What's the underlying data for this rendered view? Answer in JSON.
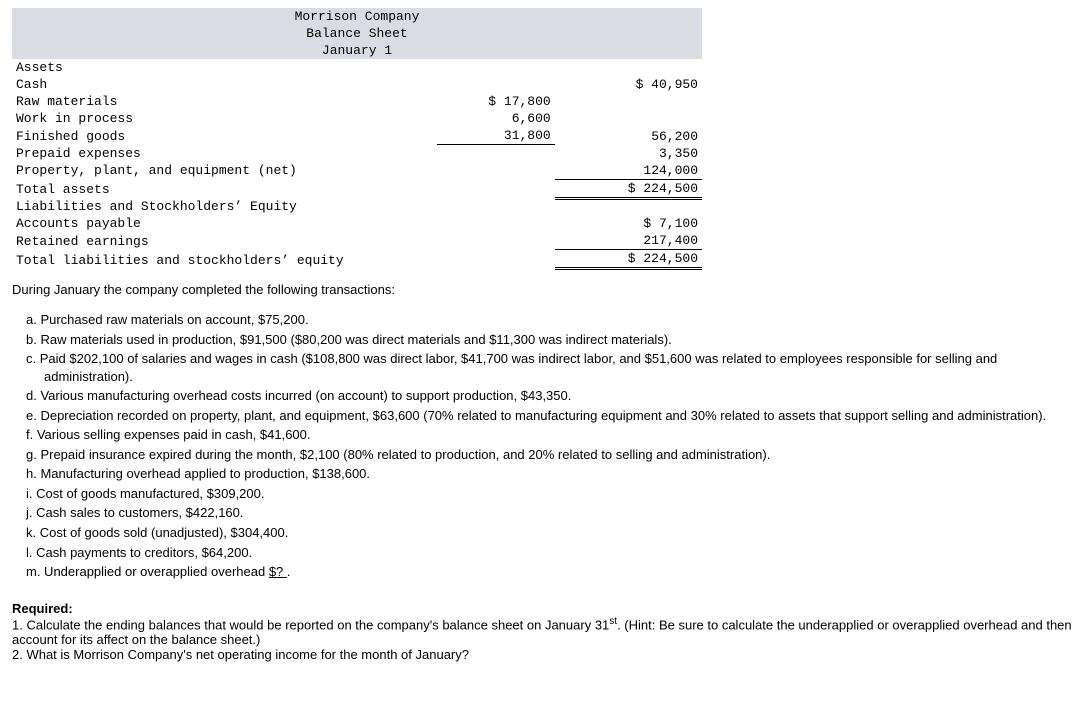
{
  "header": {
    "company": "Morrison Company",
    "title": "Balance Sheet",
    "date": "January 1"
  },
  "bs": {
    "assets_hdr": "Assets",
    "cash_lbl": "Cash",
    "cash_val": "$ 40,950",
    "rm_lbl": "Raw materials",
    "rm_val": "$ 17,800",
    "wip_lbl": "Work in process",
    "wip_val": "6,600",
    "fg_lbl": "Finished goods",
    "fg_val": "31,800",
    "inv_total": "56,200",
    "prepaid_lbl": "Prepaid expenses",
    "prepaid_val": "3,350",
    "ppe_lbl": "Property, plant, and equipment (net)",
    "ppe_val": "124,000",
    "total_assets_lbl": "Total assets",
    "total_assets_val": "$ 224,500",
    "liab_hdr": "Liabilities and Stockholders’ Equity",
    "ap_lbl": "Accounts payable",
    "ap_val": "$ 7,100",
    "re_lbl": "Retained earnings",
    "re_val": "217,400",
    "total_le_lbl": "Total liabilities and stockholders’ equity",
    "total_le_val": "$ 224,500"
  },
  "intro": "During January the company completed the following transactions:",
  "tx": {
    "a": "a. Purchased raw materials on account, $75,200.",
    "b": "b. Raw materials used in production, $91,500 ($80,200 was direct materials and $11,300 was indirect materials).",
    "c": "c. Paid $202,100 of salaries and wages in cash ($108,800 was direct labor, $41,700 was indirect labor, and $51,600 was related to employees responsible for selling and administration).",
    "d": "d. Various manufacturing overhead costs incurred (on account) to support production, $43,350.",
    "e": "e. Depreciation recorded on property, plant, and equipment, $63,600 (70% related to manufacturing equipment and 30% related to assets that support selling and administration).",
    "f": "f. Various selling expenses paid in cash, $41,600.",
    "g": "g. Prepaid insurance expired during the month, $2,100 (80% related to production, and 20% related to selling and administration).",
    "h": "h. Manufacturing overhead applied to production, $138,600.",
    "i": "i. Cost of goods manufactured, $309,200.",
    "j": "j. Cash sales to customers, $422,160.",
    "k": "k. Cost of goods sold (unadjusted), $304,400.",
    "l": "l. Cash payments to creditors, $64,200.",
    "m_pre": "m. Underapplied or overapplied overhead ",
    "m_blank": "   $?   ",
    "m_post": "."
  },
  "req": {
    "hdr": "Required:",
    "r1a": "1. Calculate the ending balances that would be reported on the company's balance sheet on January 31",
    "r1sup": "st",
    "r1b": ". (Hint: Be sure to calculate the underapplied or overapplied overhead and then account for its affect on the balance sheet.)",
    "r2": "2. What is Morrison Company's net operating income for the month of January?"
  }
}
